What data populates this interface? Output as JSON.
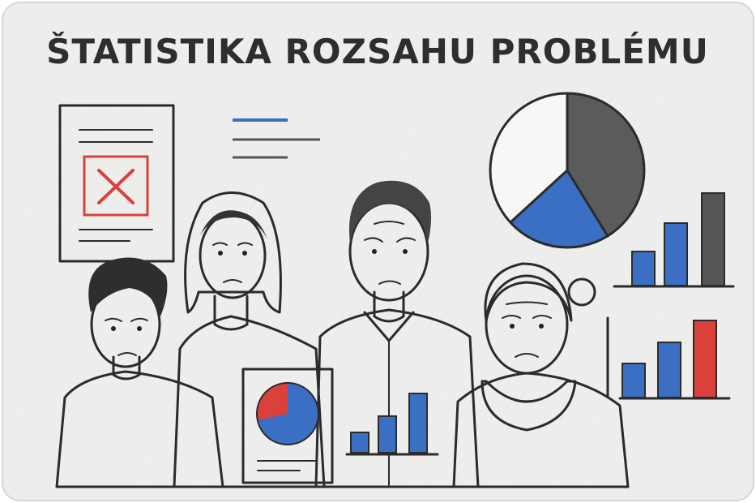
{
  "title": "ŠTATISTIKA ROZSAHU PROBLÉMU"
}
